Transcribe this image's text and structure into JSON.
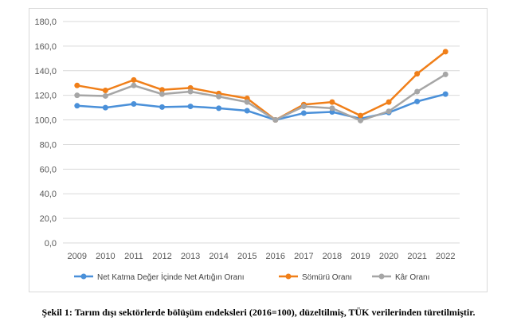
{
  "caption": "Şekil 1: Tarım dışı sektörlerde bölüşüm endeksleri (2016=100), düzeltilmiş, TÜK verilerinden türetilmiştir.",
  "chart_data": {
    "type": "line",
    "title": "",
    "xlabel": "",
    "ylabel": "",
    "categories": [
      "2009",
      "2010",
      "2011",
      "2012",
      "2013",
      "2014",
      "2015",
      "2016",
      "2017",
      "2018",
      "2019",
      "2020",
      "2021",
      "2022"
    ],
    "ylim": [
      0,
      180
    ],
    "yticks": [
      "0,0",
      "20,0",
      "40,0",
      "60,0",
      "80,0",
      "100,0",
      "120,0",
      "140,0",
      "160,0",
      "180,0"
    ],
    "grid": true,
    "legend_position": "bottom",
    "series": [
      {
        "name": "Net Katma Değer İçinde Net Artığın Oranı",
        "color": "#4a90d9",
        "values": [
          111.5,
          110.0,
          113.0,
          110.5,
          111.0,
          109.5,
          107.5,
          100.0,
          105.5,
          106.5,
          101.0,
          106.0,
          115.0,
          121.0
        ]
      },
      {
        "name": "Sömürü Oranı",
        "color": "#f07f19",
        "values": [
          128.0,
          124.0,
          132.5,
          124.5,
          126.0,
          121.5,
          117.5,
          100.0,
          112.5,
          114.5,
          103.5,
          114.5,
          137.5,
          155.5
        ]
      },
      {
        "name": "Kâr Oranı",
        "color": "#a6a6a6",
        "values": [
          120.0,
          119.5,
          128.0,
          121.0,
          123.0,
          119.0,
          114.5,
          100.0,
          111.0,
          109.5,
          99.5,
          107.0,
          123.0,
          137.0
        ]
      }
    ]
  }
}
